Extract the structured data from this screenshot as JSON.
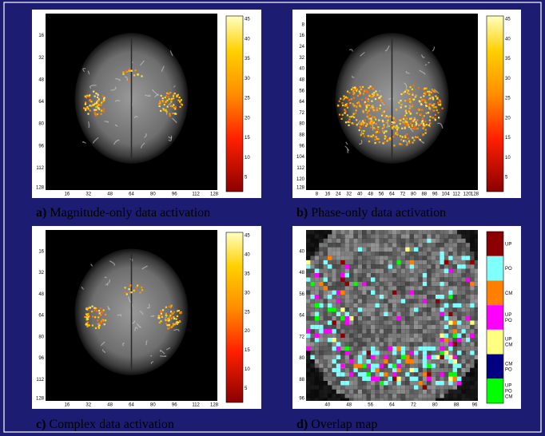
{
  "panels": [
    {
      "label": "a)",
      "caption": "Magnitude-only data activation",
      "yticks": [
        "16",
        "32",
        "48",
        "64",
        "80",
        "96",
        "112",
        "128"
      ],
      "xticks": [
        "16",
        "32",
        "48",
        "64",
        "80",
        "96",
        "112",
        "128"
      ],
      "colorbar": [
        "45",
        "40",
        "35",
        "30",
        "25",
        "20",
        "15",
        "10",
        "5"
      ]
    },
    {
      "label": "b)",
      "caption": "Phase-only data activation",
      "yticks": [
        "8",
        "16",
        "24",
        "32",
        "40",
        "48",
        "56",
        "64",
        "72",
        "80",
        "88",
        "96",
        "104",
        "112",
        "120",
        "128"
      ],
      "xticks": [
        "8",
        "16",
        "24",
        "32",
        "40",
        "48",
        "56",
        "64",
        "72",
        "80",
        "88",
        "96",
        "104",
        "112",
        "120",
        "128"
      ],
      "colorbar": [
        "45",
        "40",
        "35",
        "30",
        "25",
        "20",
        "15",
        "10",
        "5"
      ]
    },
    {
      "label": "c)",
      "caption": "Complex data activation",
      "yticks": [
        "16",
        "32",
        "48",
        "64",
        "80",
        "96",
        "112",
        "128"
      ],
      "xticks": [
        "16",
        "32",
        "48",
        "64",
        "80",
        "96",
        "112",
        "128"
      ],
      "colorbar": [
        "45",
        "40",
        "35",
        "30",
        "25",
        "20",
        "15",
        "10",
        "5"
      ]
    },
    {
      "label": "d)",
      "caption": "Overlap map",
      "yticks": [
        "40",
        "48",
        "56",
        "64",
        "72",
        "80",
        "88",
        "96"
      ],
      "xticks": [
        "40",
        "48",
        "56",
        "64",
        "72",
        "80",
        "88",
        "96"
      ],
      "legend": [
        {
          "lines": [
            "UP"
          ],
          "color": "#8b0000"
        },
        {
          "lines": [
            "PO"
          ],
          "color": "#80ffff"
        },
        {
          "lines": [
            "CM"
          ],
          "color": "#ff7f00"
        },
        {
          "lines": [
            "UP",
            "PO"
          ],
          "color": "#ff00ff"
        },
        {
          "lines": [
            "UP",
            "CM"
          ],
          "color": "#ffff80"
        },
        {
          "lines": [
            "CM",
            "PO"
          ],
          "color": "#000080"
        },
        {
          "lines": [
            "UP",
            "PO",
            "CM"
          ],
          "color": "#00ff00"
        }
      ]
    }
  ]
}
